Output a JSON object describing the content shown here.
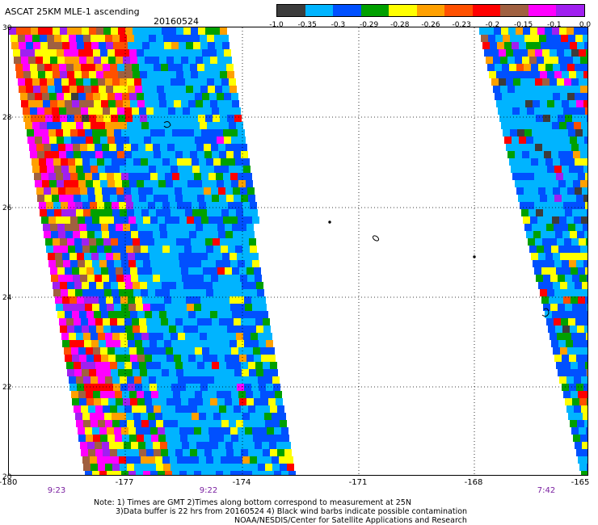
{
  "header": {
    "title": "ASCAT 25KM MLE-1 ascending",
    "date": "20160524"
  },
  "colorbar": {
    "colors": [
      "#3c3c3c",
      "#00b4ff",
      "#0050ff",
      "#00a000",
      "#ffff00",
      "#ffa000",
      "#ff5000",
      "#ff0000",
      "#a06040",
      "#ff00ff",
      "#a020f0"
    ],
    "labels": [
      "-1.0",
      "-0.35",
      "-0.3",
      "-0.29",
      "-0.28",
      "-0.26",
      "-0.23",
      "-0.2",
      "-0.15",
      "-0.1",
      "0.0"
    ]
  },
  "axes": {
    "y_ticks": [
      "30",
      "28",
      "26",
      "24",
      "22",
      "20"
    ],
    "x_ticks": [
      "-180",
      "-177",
      "-174",
      "-171",
      "-168",
      "-165"
    ],
    "time_labels": [
      "9:23",
      "9:22",
      "7:42"
    ]
  },
  "notes": {
    "line1": "Note: 1) Times are GMT 2)Times along bottom correspond to measurement at 25N",
    "line2": "3)Data buffer is 22 hrs from 20160524 4) Black wind barbs indicate possible contamination",
    "line3": "NOAA/NESDIS/Center for Satellite Applications and Research"
  }
}
